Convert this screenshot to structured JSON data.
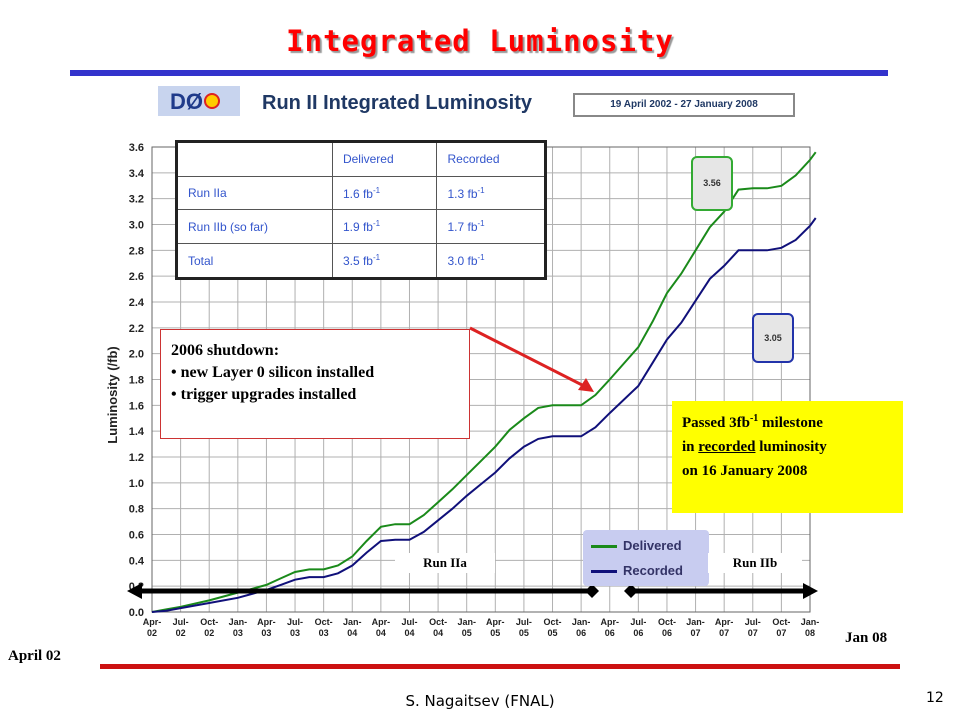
{
  "slide": {
    "title": "Integrated Luminosity",
    "footer": "S. Nagaitsev (FNAL)",
    "page_number": "12",
    "date_start_label": "April 02",
    "date_end_label": "Jan 08"
  },
  "header": {
    "logo_text": "DØ",
    "chart_title": "Run II Integrated Luminosity",
    "date_range": "19 April 2002 - 27 January 2008"
  },
  "table": {
    "columns": [
      "",
      "Delivered",
      "Recorded"
    ],
    "rows": [
      {
        "label": "Run IIa",
        "delivered": "1.6 fb",
        "recorded": "1.3 fb"
      },
      {
        "label": "Run IIb (so far)",
        "delivered": "1.9 fb",
        "recorded": "1.7 fb"
      },
      {
        "label": "Total",
        "delivered": "3.5 fb",
        "recorded": "3.0 fb"
      }
    ],
    "unit_exponent": "-1"
  },
  "annotations": {
    "shutdown_title": "2006 shutdown:",
    "shutdown_items": [
      "new Layer 0 silicon installed",
      "trigger upgrades installed"
    ],
    "milestone_prefix": "Passed 3fb",
    "milestone_exponent": "-1",
    "milestone_suffix": " milestone",
    "milestone_line2_pre": "in ",
    "milestone_line2_underlined": "recorded",
    "milestone_line2_post": " luminosity",
    "milestone_line3": "on 16 January 2008",
    "delivered_final": "3.56",
    "recorded_final": "3.05",
    "run_iia": "Run IIa",
    "run_iib": "Run IIb"
  },
  "colors": {
    "title": "#ff0000",
    "delivered": "#1a8a1a",
    "recorded": "#10107a",
    "milestone_bg": "#ffff00",
    "arrow": "#dd2222"
  },
  "chart_data": {
    "type": "line",
    "ylabel": "Luminosity (/fb)",
    "ylim": [
      0,
      3.6
    ],
    "yticks": [
      "0.0",
      "0.2",
      "0.4",
      "0.6",
      "0.8",
      "1.0",
      "1.2",
      "1.4",
      "1.6",
      "1.8",
      "2.0",
      "2.2",
      "2.4",
      "2.6",
      "2.8",
      "3.0",
      "3.2",
      "3.4",
      "3.6"
    ],
    "x_ticks": [
      "Apr-02",
      "Jul-02",
      "Oct-02",
      "Jan-03",
      "Apr-03",
      "Jul-03",
      "Oct-03",
      "Jan-04",
      "Apr-04",
      "Jul-04",
      "Oct-04",
      "Jan-05",
      "Apr-05",
      "Jul-05",
      "Oct-05",
      "Jan-06",
      "Apr-06",
      "Jul-06",
      "Oct-06",
      "Jan-07",
      "Apr-07",
      "Jul-07",
      "Oct-07",
      "Jan-08"
    ],
    "grid": true,
    "legend": "bottom-right",
    "series": [
      {
        "name": "Delivered",
        "x": [
          0,
          0.5,
          1,
          2,
          3,
          3.5,
          4,
          4.5,
          5,
          5.5,
          6,
          6.5,
          7,
          7.5,
          8,
          8.5,
          9,
          9.5,
          10,
          10.5,
          11,
          11.5,
          12,
          12.5,
          13,
          13.5,
          14,
          14.5,
          15,
          15.5,
          16,
          17,
          17.5,
          18,
          18.5,
          19,
          19.5,
          20,
          20.5,
          21,
          21.5,
          22,
          22.5,
          23,
          23.2
        ],
        "values": [
          0,
          0.02,
          0.04,
          0.09,
          0.15,
          0.18,
          0.21,
          0.26,
          0.31,
          0.33,
          0.33,
          0.36,
          0.43,
          0.55,
          0.66,
          0.68,
          0.68,
          0.75,
          0.85,
          0.95,
          1.06,
          1.17,
          1.28,
          1.41,
          1.5,
          1.58,
          1.6,
          1.6,
          1.6,
          1.68,
          1.8,
          2.05,
          2.25,
          2.47,
          2.62,
          2.8,
          2.98,
          3.1,
          3.27,
          3.28,
          3.28,
          3.3,
          3.38,
          3.5,
          3.56
        ]
      },
      {
        "name": "Recorded",
        "x": [
          0,
          0.5,
          1,
          2,
          3,
          3.5,
          4,
          4.5,
          5,
          5.5,
          6,
          6.5,
          7,
          7.5,
          8,
          8.5,
          9,
          9.5,
          10,
          10.5,
          11,
          11.5,
          12,
          12.5,
          13,
          13.5,
          14,
          14.5,
          15,
          15.5,
          16,
          17,
          17.5,
          18,
          18.5,
          19,
          19.5,
          20,
          20.5,
          21,
          21.5,
          22,
          22.5,
          23,
          23.2
        ],
        "values": [
          0,
          0.01,
          0.03,
          0.07,
          0.11,
          0.14,
          0.17,
          0.21,
          0.25,
          0.27,
          0.27,
          0.3,
          0.36,
          0.46,
          0.55,
          0.56,
          0.56,
          0.62,
          0.71,
          0.8,
          0.9,
          0.99,
          1.08,
          1.19,
          1.28,
          1.34,
          1.36,
          1.36,
          1.36,
          1.43,
          1.54,
          1.75,
          1.93,
          2.11,
          2.24,
          2.41,
          2.58,
          2.68,
          2.8,
          2.8,
          2.8,
          2.82,
          2.88,
          2.99,
          3.05
        ]
      }
    ]
  }
}
